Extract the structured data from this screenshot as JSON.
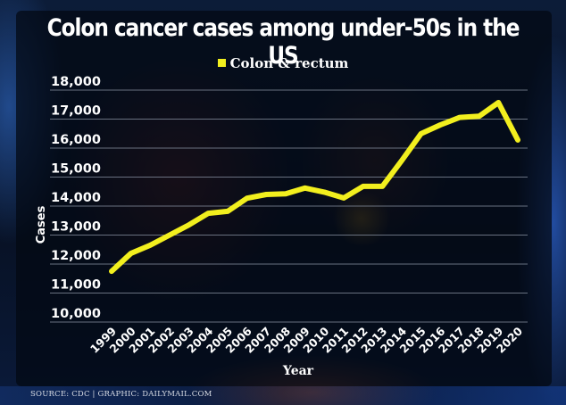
{
  "chart_data": {
    "type": "line",
    "title": "Colon cancer cases among under-50s in the US",
    "xlabel": "Year",
    "ylabel": "Cases",
    "ylim": [
      10000,
      18000
    ],
    "yticks": [
      10000,
      11000,
      12000,
      13000,
      14000,
      15000,
      16000,
      17000,
      18000
    ],
    "ytick_labels": [
      "10,000",
      "11,000",
      "12,000",
      "13,000",
      "14,000",
      "15,000",
      "16,000",
      "17,000",
      "18,000"
    ],
    "grid": true,
    "legend_position": "top-center",
    "x": [
      "1999",
      "2000",
      "2001",
      "2002",
      "2003",
      "2004",
      "2005",
      "2006",
      "2007",
      "2008",
      "2009",
      "2010",
      "2011",
      "2012",
      "2013",
      "2014",
      "2015",
      "2016",
      "2017",
      "2018",
      "2019",
      "2020"
    ],
    "series": [
      {
        "name": "Colon & rectum",
        "color": "#f2ef1e",
        "values": [
          11750,
          12370,
          12650,
          13000,
          13350,
          13750,
          13820,
          14270,
          14400,
          14420,
          14620,
          14480,
          14280,
          14680,
          14680,
          15570,
          16500,
          16800,
          17060,
          17100,
          17570,
          16280
        ]
      }
    ]
  },
  "footer": {
    "text": "SOURCE: CDC  |  GRAPHIC: DAILYMAIL.COM"
  }
}
